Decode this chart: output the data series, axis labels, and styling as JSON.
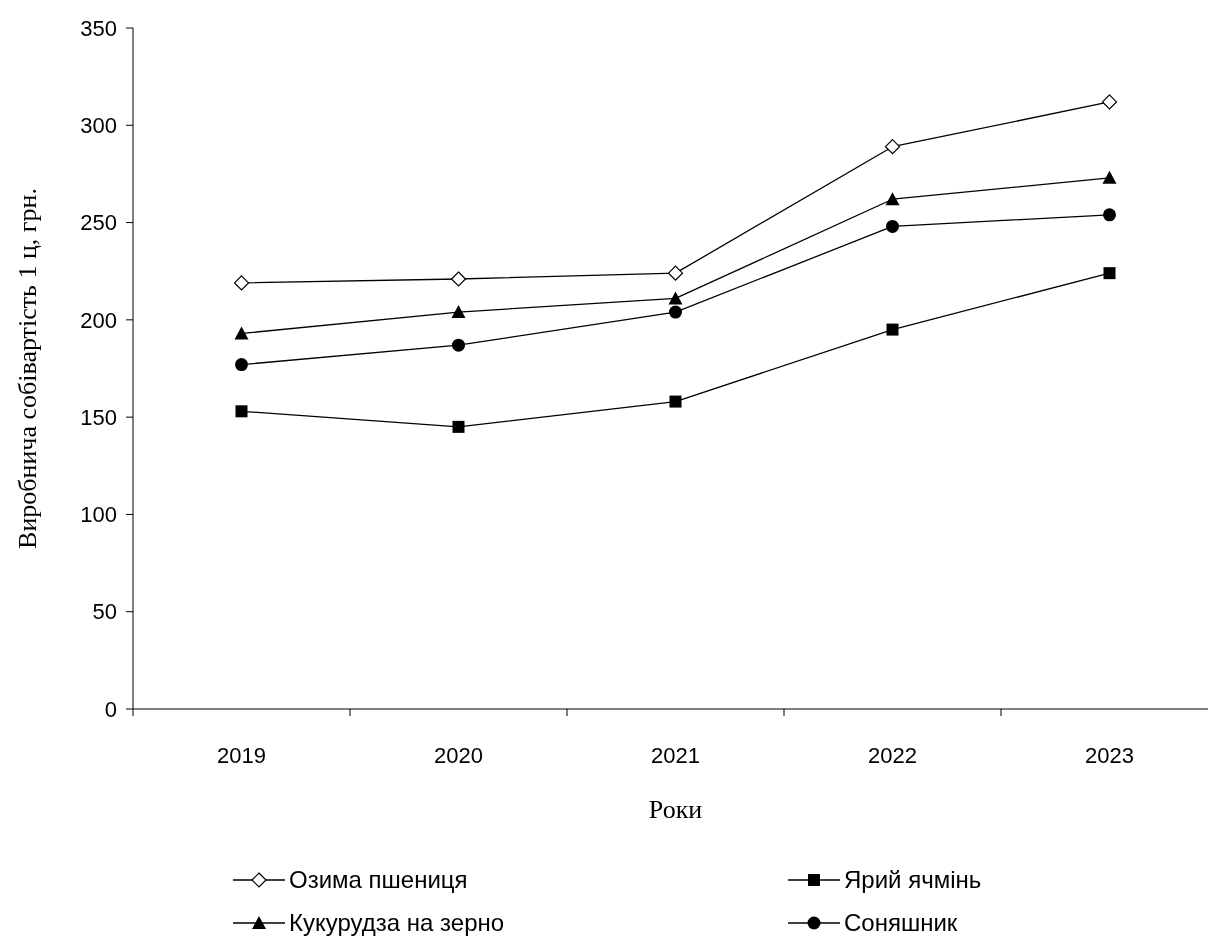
{
  "chart_data": {
    "type": "line",
    "xlabel": "Роки",
    "ylabel": "Виробнича собівартість 1 ц, грн.",
    "categories": [
      "2019",
      "2020",
      "2021",
      "2022",
      "2023"
    ],
    "ylim": [
      0,
      350
    ],
    "yticks": [
      0,
      50,
      100,
      150,
      200,
      250,
      300,
      350
    ],
    "grid": false,
    "legend": "bottom",
    "line_style": "solid",
    "series": [
      {
        "name": "Озима пшениця",
        "color": "#000000",
        "marker": "diamond",
        "values": [
          219,
          221,
          224,
          289,
          312
        ]
      },
      {
        "name": "Ярий ячмінь",
        "color": "#000000",
        "marker": "square",
        "values": [
          153,
          145,
          158,
          195,
          224
        ]
      },
      {
        "name": "Кукурудза на зерно",
        "color": "#000000",
        "marker": "triangle",
        "values": [
          193,
          204,
          211,
          262,
          273
        ]
      },
      {
        "name": "Соняшник",
        "color": "#000000",
        "marker": "circle",
        "values": [
          177,
          187,
          204,
          248,
          254
        ]
      }
    ]
  }
}
